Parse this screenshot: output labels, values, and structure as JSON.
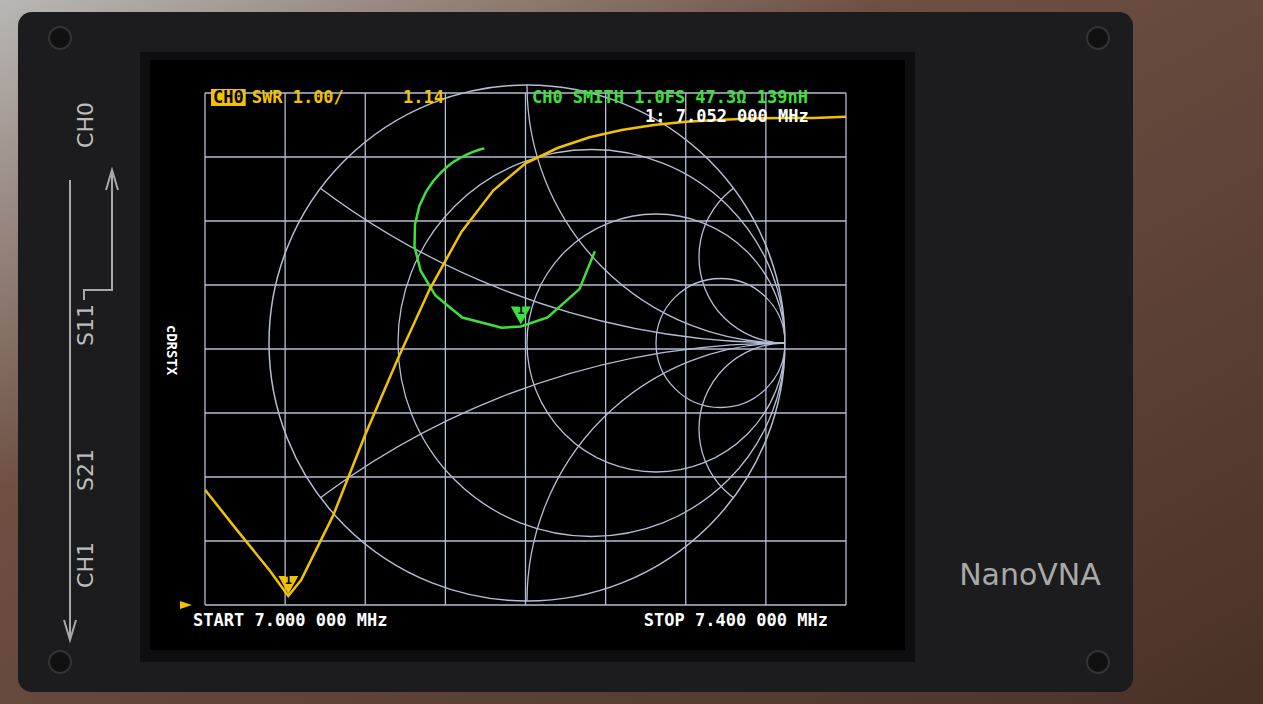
{
  "device": {
    "brand": "NanoVNA",
    "port_labels": [
      "CH0",
      "S11",
      "S21",
      "CH1"
    ],
    "side_label": "cDRSTX"
  },
  "chart_data": [
    {
      "type": "line",
      "channel": "CH0",
      "title": "SWR 1.00/",
      "color": "#f2c200",
      "x": [
        7.0,
        7.02,
        7.04,
        7.052,
        7.06,
        7.08,
        7.1,
        7.12,
        7.14,
        7.16,
        7.18,
        7.2,
        7.22,
        7.24,
        7.26,
        7.28,
        7.3,
        7.32,
        7.34,
        7.36,
        7.38,
        7.4
      ],
      "values": [
        2.8,
        2.17,
        1.55,
        1.14,
        1.39,
        2.4,
        3.66,
        4.83,
        5.92,
        6.83,
        7.48,
        7.9,
        8.14,
        8.31,
        8.42,
        8.5,
        8.55,
        8.58,
        8.6,
        8.61,
        8.61,
        8.63
      ],
      "xlim": [
        7.0,
        7.4
      ],
      "ylim": [
        1,
        9
      ],
      "xticks": [
        7.0,
        7.05,
        7.1,
        7.15,
        7.2,
        7.25,
        7.3,
        7.35,
        7.4
      ],
      "yticks": [
        1,
        2,
        3,
        4,
        5,
        6,
        7,
        8,
        9
      ],
      "grid": true,
      "tick_labels": false,
      "start_label": "START 7.000 000 MHz",
      "stop_label": "STOP 7.400 000 MHz",
      "markers": [
        {
          "label": "1",
          "x": 7.052,
          "value": 1.14,
          "text": "1: 7.052 000 MHz"
        }
      ]
    },
    {
      "type": "smith",
      "channel": "CH0",
      "title": "SMITH 1.0FS",
      "readout": "47.3Ω 139nH",
      "color": "#3ee03e",
      "x": [
        7.0,
        7.02,
        7.04,
        7.052,
        7.06,
        7.08,
        7.1,
        7.12,
        7.14,
        7.16,
        7.18,
        7.2,
        7.22,
        7.24,
        7.26,
        7.28,
        7.3,
        7.32,
        7.34,
        7.36,
        7.38,
        7.4
      ],
      "real": [
        0.263,
        0.203,
        0.08,
        -0.024,
        -0.098,
        -0.251,
        -0.355,
        -0.412,
        -0.436,
        -0.434,
        -0.417,
        -0.391,
        -0.363,
        -0.334,
        -0.307,
        -0.283,
        -0.256,
        -0.234,
        -0.212,
        -0.188,
        -0.177,
        -0.165
      ],
      "imag": [
        0.356,
        0.209,
        0.099,
        0.064,
        0.059,
        0.099,
        0.184,
        0.279,
        0.374,
        0.46,
        0.531,
        0.587,
        0.628,
        0.66,
        0.685,
        0.703,
        0.719,
        0.73,
        0.74,
        0.748,
        0.752,
        0.754
      ],
      "xlim": [
        -1,
        1
      ],
      "ylim": [
        -1,
        1
      ],
      "markers": [
        {
          "label": "1",
          "x": 7.052
        }
      ]
    }
  ]
}
